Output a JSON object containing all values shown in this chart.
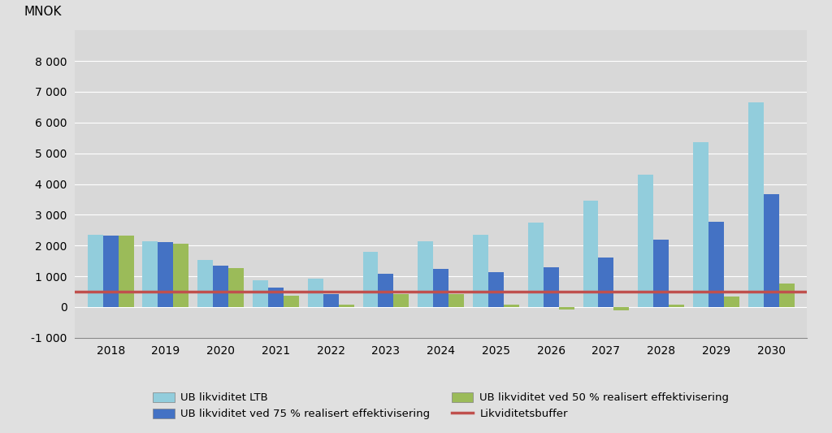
{
  "years": [
    2018,
    2019,
    2020,
    2021,
    2022,
    2023,
    2024,
    2025,
    2026,
    2027,
    2028,
    2029,
    2030
  ],
  "ub_ltb": [
    2350,
    2150,
    1520,
    870,
    920,
    1800,
    2150,
    2350,
    2750,
    3450,
    4300,
    5350,
    6650
  ],
  "ub_75pct": [
    2320,
    2120,
    1350,
    620,
    430,
    1080,
    1230,
    1130,
    1290,
    1620,
    2180,
    2780,
    3680
  ],
  "ub_50pct": [
    2320,
    2050,
    1270,
    380,
    80,
    430,
    420,
    80,
    -80,
    -100,
    80,
    350,
    760
  ],
  "buffer_value": 500,
  "color_ltb": "#92CDDC",
  "color_75pct": "#4472C4",
  "color_50pct": "#9BBB59",
  "color_buffer": "#C0504D",
  "ylabel": "MNOK",
  "ylim": [
    -1000,
    9000
  ],
  "yticks": [
    -1000,
    0,
    1000,
    2000,
    3000,
    4000,
    5000,
    6000,
    7000,
    8000
  ],
  "legend_ltb": "UB likviditet LTB",
  "legend_75": "UB likviditet ved 75 % realisert effektivisering",
  "legend_50": "UB likviditet ved 50 % realisert effektivisering",
  "legend_buffer": "Likviditetsbuffer",
  "outer_background": "#E0E0E0",
  "plot_background": "#D8D8D8",
  "bar_width": 0.28
}
